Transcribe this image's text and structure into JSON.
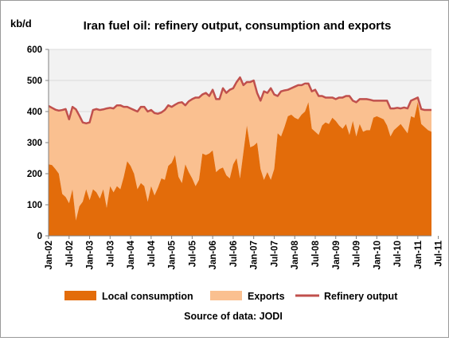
{
  "chart_data": {
    "type": "area",
    "title": "Iran fuel oil: refinery output, consumption and exports",
    "ylabel": "kb/d",
    "ylim": [
      0,
      600
    ],
    "yticks": [
      0,
      100,
      200,
      300,
      400,
      500,
      600
    ],
    "x_ticks": [
      "Jan-02",
      "Jul-02",
      "Jan-03",
      "Jul-03",
      "Jan-04",
      "Jul-04",
      "Jan-05",
      "Jul-05",
      "Jan-06",
      "Jul-06",
      "Jan-07",
      "Jul-07",
      "Jan-08",
      "Jul-08",
      "Jan-09",
      "Jul-09",
      "Jan-10",
      "Jul-10",
      "Jan-11",
      "Jul-11"
    ],
    "start_month": "Jan-02",
    "legend_position": "bottom",
    "source": "Source of data: JODI",
    "colors": {
      "local": "#E36C0A",
      "exports": "#FAC090",
      "refinery": "#C0504D",
      "background": "#F2F2F2"
    },
    "series": [
      {
        "name": "Local consumption",
        "kind": "area",
        "values": [
          230,
          228,
          215,
          200,
          135,
          125,
          105,
          150,
          50,
          95,
          110,
          150,
          115,
          150,
          140,
          120,
          150,
          90,
          160,
          140,
          160,
          150,
          190,
          240,
          225,
          200,
          150,
          170,
          160,
          110,
          160,
          130,
          155,
          185,
          180,
          225,
          235,
          260,
          190,
          170,
          230,
          205,
          185,
          160,
          180,
          265,
          260,
          265,
          275,
          205,
          215,
          220,
          195,
          185,
          230,
          250,
          185,
          270,
          355,
          285,
          290,
          300,
          215,
          180,
          205,
          180,
          215,
          330,
          320,
          350,
          385,
          390,
          380,
          375,
          390,
          400,
          430,
          345,
          335,
          325,
          355,
          365,
          360,
          380,
          370,
          355,
          345,
          360,
          325,
          370,
          320,
          360,
          335,
          340,
          340,
          380,
          385,
          380,
          375,
          355,
          320,
          340,
          350,
          360,
          345,
          330,
          385,
          380,
          430,
          360,
          350,
          340,
          335
        ]
      },
      {
        "name": "Exports",
        "kind": "area",
        "values": [
          188,
          184,
          191,
          203,
          270,
          283,
          270,
          265,
          357,
          292,
          255,
          212,
          250,
          255,
          268,
          285,
          257,
          320,
          252,
          270,
          260,
          270,
          225,
          175,
          185,
          205,
          250,
          245,
          255,
          290,
          245,
          265,
          238,
          212,
          225,
          195,
          180,
          162,
          238,
          260,
          190,
          228,
          255,
          285,
          265,
          190,
          200,
          185,
          195,
          235,
          225,
          255,
          265,
          285,
          245,
          245,
          325,
          215,
          140,
          210,
          210,
          160,
          220,
          285,
          255,
          295,
          240,
          120,
          145,
          118,
          85,
          85,
          100,
          110,
          95,
          85,
          60,
          120,
          135,
          125,
          95,
          80,
          85,
          65,
          70,
          90,
          100,
          90,
          125,
          65,
          110,
          80,
          105,
          100,
          98,
          55,
          50,
          55,
          60,
          80,
          90,
          70,
          62,
          50,
          68,
          80,
          50,
          60,
          15,
          48,
          55,
          65,
          70
        ]
      },
      {
        "name": "Refinery output",
        "kind": "line",
        "values": [
          418,
          412,
          406,
          403,
          405,
          408,
          375,
          415,
          407,
          387,
          365,
          362,
          365,
          405,
          408,
          405,
          407,
          410,
          412,
          410,
          420,
          420,
          415,
          415,
          410,
          405,
          400,
          415,
          415,
          400,
          405,
          395,
          393,
          397,
          405,
          420,
          415,
          422,
          428,
          430,
          420,
          433,
          440,
          445,
          445,
          455,
          460,
          450,
          470,
          440,
          440,
          475,
          460,
          470,
          475,
          495,
          510,
          485,
          495,
          495,
          500,
          460,
          435,
          465,
          460,
          475,
          455,
          450,
          465,
          468,
          470,
          475,
          480,
          485,
          485,
          490,
          490,
          465,
          470,
          450,
          450,
          445,
          445,
          445,
          440,
          445,
          445,
          450,
          450,
          435,
          430,
          440,
          440,
          440,
          438,
          435,
          435,
          435,
          435,
          435,
          410,
          410,
          412,
          410,
          413,
          410,
          435,
          440,
          445,
          408,
          405,
          405,
          405
        ]
      }
    ]
  }
}
